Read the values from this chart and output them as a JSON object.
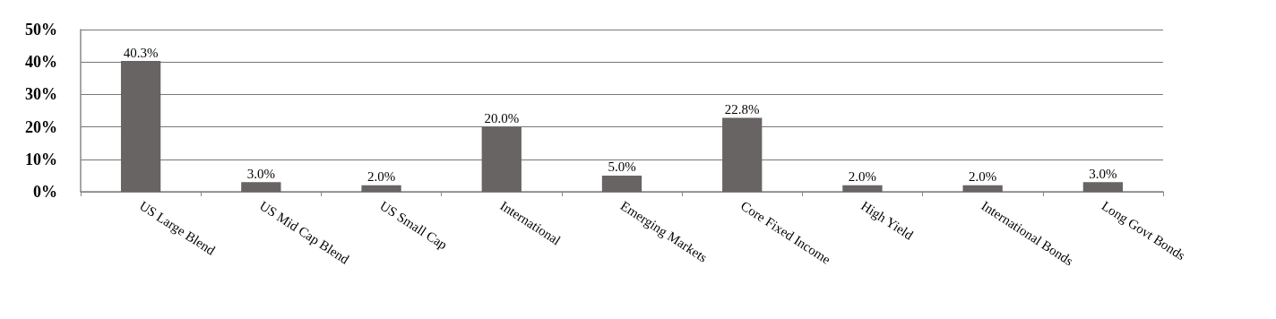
{
  "chart_data": {
    "type": "bar",
    "categories": [
      "US Large Blend",
      "US Mid Cap Blend",
      "US Small Cap",
      "International",
      "Emerging Markets",
      "Core Fixed Income",
      "High Yield",
      "International Bonds",
      "Long Govt Bonds"
    ],
    "values": [
      40.3,
      3.0,
      2.0,
      20.0,
      5.0,
      22.8,
      2.0,
      2.0,
      3.0
    ],
    "value_labels": [
      "40.3%",
      "3.0%",
      "2.0%",
      "20.0%",
      "5.0%",
      "22.8%",
      "2.0%",
      "2.0%",
      "3.0%"
    ],
    "color": "#686463",
    "ylim": [
      0,
      50
    ],
    "yticks": [
      {
        "value": 0,
        "label": "0%"
      },
      {
        "value": 10,
        "label": "10%"
      },
      {
        "value": 20,
        "label": "20%"
      },
      {
        "value": 30,
        "label": "30%"
      },
      {
        "value": 40,
        "label": "40%"
      },
      {
        "value": 50,
        "label": "50%"
      }
    ],
    "grid": "y"
  }
}
